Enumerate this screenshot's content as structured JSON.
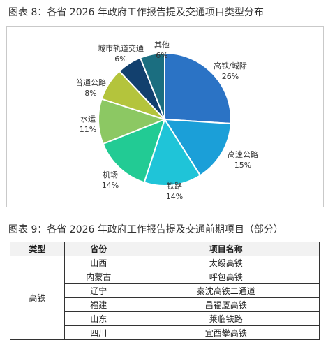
{
  "figure8": {
    "title": "图表 8：各省 2026 年政府工作报告提及交通项目类型分布"
  },
  "chart_data": {
    "type": "pie",
    "title": "图表 8：各省 2026 年政府工作报告提及交通项目类型分布",
    "slices": [
      {
        "label": "高铁/城际",
        "value": 26,
        "display": "26%",
        "color": "#2b73c5"
      },
      {
        "label": "高速公路",
        "value": 15,
        "display": "15%",
        "color": "#1b9fd8"
      },
      {
        "label": "铁路",
        "value": 14,
        "display": "14%",
        "color": "#1fc4d8"
      },
      {
        "label": "机场",
        "value": 14,
        "display": "14%",
        "color": "#22cb94"
      },
      {
        "label": "水运",
        "value": 11,
        "display": "11%",
        "color": "#8cc863"
      },
      {
        "label": "普通公路",
        "value": 8,
        "display": "8%",
        "color": "#b4c43c"
      },
      {
        "label": "城市轨道交通",
        "value": 6,
        "display": "6%",
        "color": "#12406e"
      },
      {
        "label": "其他",
        "value": 6,
        "display": "6%",
        "color": "#1b6e80"
      }
    ]
  },
  "figure9": {
    "title": "图表 9：各省 2026 年政府工作报告提及交通前期项目（部分）",
    "headers": [
      "类型",
      "省份",
      "项目名称"
    ],
    "group_type": "高铁",
    "rows": [
      {
        "province": "山西",
        "project": "太绥高铁"
      },
      {
        "province": "内蒙古",
        "project": "呼包高铁"
      },
      {
        "province": "辽宁",
        "project": "秦沈高铁二通道"
      },
      {
        "province": "福建",
        "project": "昌福厦高铁"
      },
      {
        "province": "山东",
        "project": "莱临铁路"
      },
      {
        "province": "四川",
        "project": "宜西攀高铁"
      }
    ]
  }
}
